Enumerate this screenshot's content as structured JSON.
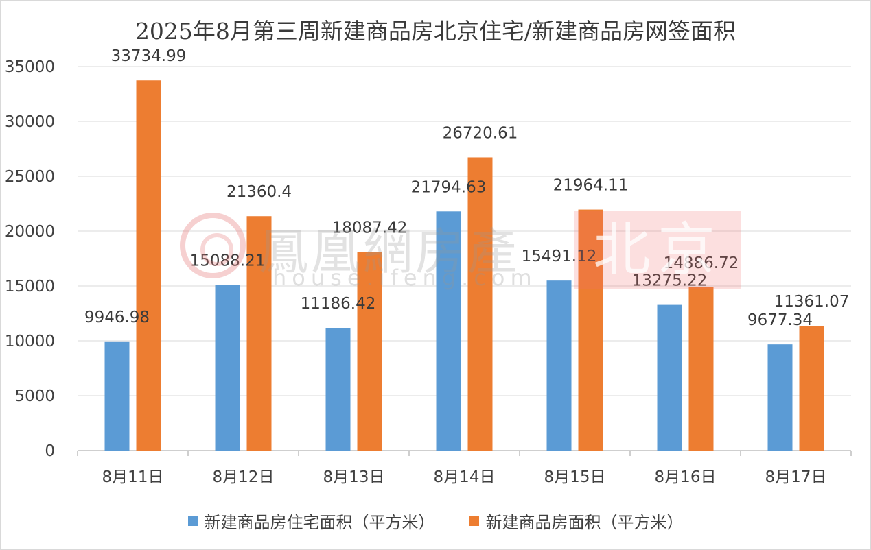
{
  "chart_data": {
    "type": "bar",
    "title": "2025年8月第三周新建商品房北京住宅/新建商品房网签面积",
    "categories": [
      "8月11日",
      "8月12日",
      "8月13日",
      "8月14日",
      "8月15日",
      "8月16日",
      "8月17日"
    ],
    "series": [
      {
        "name": "新建商品房住宅面积（平方米）",
        "color": "#5b9bd5",
        "values": [
          9946.98,
          15088.21,
          11186.42,
          21794.63,
          15491.12,
          13275.22,
          9677.34
        ],
        "labels": [
          "9946.98",
          "15088.21",
          "11186.42",
          "21794.63",
          "15491.12",
          "13275.22",
          "9677.34"
        ]
      },
      {
        "name": "新建商品房面积（平方米）",
        "color": "#ed7d31",
        "values": [
          33734.99,
          21360.4,
          18087.42,
          26720.61,
          21964.11,
          14886.72,
          11361.07
        ],
        "labels": [
          "33734.99",
          "21360.4",
          "18087.42",
          "26720.61",
          "21964.11",
          "14886.72",
          "11361.07"
        ]
      }
    ],
    "xlabel": "",
    "ylabel": "",
    "ylim": [
      0,
      35000
    ],
    "yticks": [
      "0",
      "5000",
      "10000",
      "15000",
      "20000",
      "25000",
      "30000",
      "35000"
    ],
    "grid": true,
    "legend_position": "bottom"
  },
  "watermark": {
    "brand": "鳳凰網房產",
    "domain": "house.ifeng.com",
    "city": "北京"
  }
}
